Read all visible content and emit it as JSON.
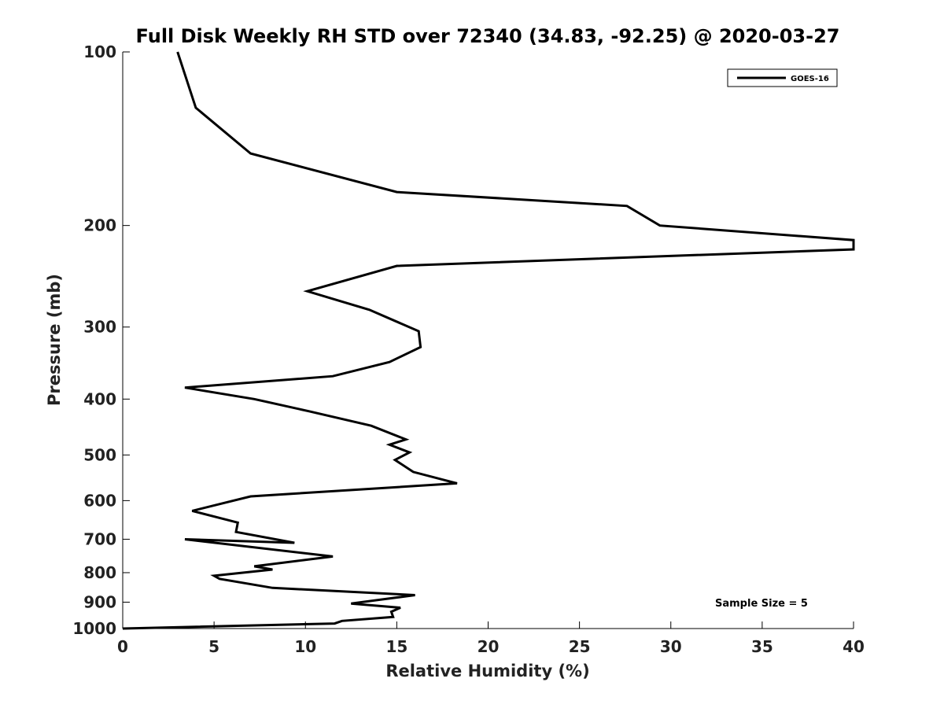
{
  "chart_data": {
    "type": "line",
    "title": "Full Disk Weekly RH STD over 72340 (34.83, -92.25) @ 2020-03-27",
    "xlabel": "Relative Humidity (%)",
    "ylabel": "Pressure (mb)",
    "xlim": [
      0,
      40
    ],
    "ylim": [
      100,
      1000
    ],
    "y_scale": "log",
    "y_inverted": true,
    "x_ticks": [
      0,
      5,
      10,
      15,
      20,
      25,
      30,
      35,
      40
    ],
    "y_ticks": [
      100,
      200,
      300,
      400,
      500,
      600,
      700,
      800,
      900,
      1000
    ],
    "grid": false,
    "legend_position": "top-right",
    "annotation": "Sample Size = 5",
    "series": [
      {
        "name": "GOES-16",
        "color": "#000000",
        "x": [
          3.0,
          4.0,
          7.0,
          15.0,
          27.6,
          29.4,
          40.0,
          40.0,
          15.0,
          10.1,
          13.5,
          16.2,
          16.3,
          14.6,
          11.5,
          3.4,
          7.2,
          10.2,
          13.6,
          15.5,
          14.6,
          15.7,
          14.9,
          15.9,
          18.3,
          7.0,
          3.8,
          6.3,
          6.2,
          9.4,
          3.4,
          11.5,
          7.2,
          8.2,
          5.0,
          5.3,
          8.2,
          16.0,
          12.5,
          15.2,
          14.7,
          14.8,
          12.0,
          11.6,
          0.0
        ],
        "y": [
          100,
          125,
          150,
          175,
          185,
          200,
          212,
          220,
          235,
          260,
          280,
          305,
          325,
          345,
          365,
          382,
          400,
          420,
          445,
          470,
          480,
          495,
          510,
          535,
          560,
          590,
          625,
          655,
          680,
          710,
          700,
          750,
          780,
          790,
          810,
          820,
          850,
          875,
          905,
          920,
          935,
          955,
          970,
          980,
          1000
        ]
      }
    ]
  }
}
